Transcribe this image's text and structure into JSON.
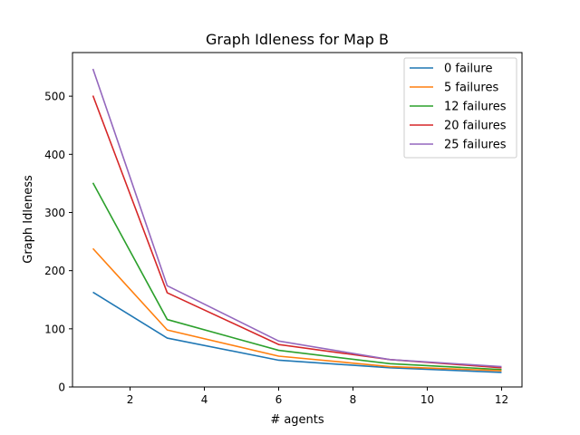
{
  "chart_data": {
    "type": "line",
    "title": "Graph Idleness for Map B",
    "xlabel": "# agents",
    "ylabel": "Graph Idleness",
    "x": [
      1,
      3,
      6,
      9,
      12
    ],
    "xlim": [
      0.45,
      12.55
    ],
    "ylim": [
      0,
      575
    ],
    "xticks": [
      2,
      4,
      6,
      8,
      10,
      12
    ],
    "yticks": [
      0,
      100,
      200,
      300,
      400,
      500
    ],
    "grid": false,
    "legend_position": "top-right",
    "series": [
      {
        "name": "0 failure",
        "color": "#1f77b4",
        "values": [
          163,
          84,
          46,
          33,
          25
        ]
      },
      {
        "name": "5 failures",
        "color": "#ff7f0e",
        "values": [
          238,
          98,
          53,
          35,
          28
        ]
      },
      {
        "name": "12 failures",
        "color": "#2ca02c",
        "values": [
          351,
          116,
          63,
          40,
          30
        ]
      },
      {
        "name": "20 failures",
        "color": "#d62728",
        "values": [
          501,
          162,
          73,
          47,
          33
        ]
      },
      {
        "name": "25 failures",
        "color": "#9467bd",
        "values": [
          547,
          174,
          79,
          47,
          35
        ]
      }
    ]
  }
}
